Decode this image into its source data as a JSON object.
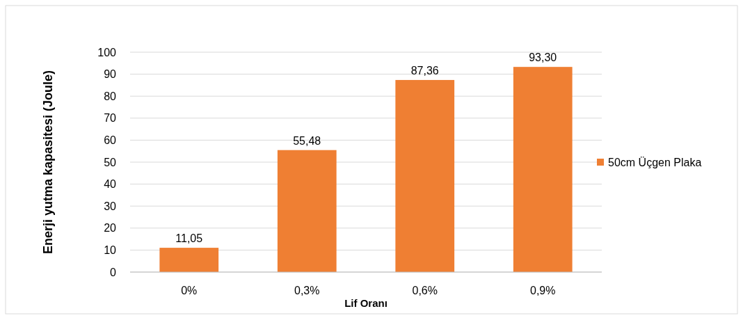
{
  "chart_data": {
    "type": "bar",
    "xlabel": "Lif Oranı",
    "ylabel": "Enerji yutma kapasitesi (Joule)",
    "categories": [
      "0%",
      "0,3%",
      "0,6%",
      "0,9%"
    ],
    "series": [
      {
        "name": "50cm Üçgen Plaka",
        "color": "#ef7f33",
        "values": [
          11.05,
          55.48,
          87.36,
          93.3
        ],
        "value_labels": [
          "11,05",
          "55,48",
          "87,36",
          "93,30"
        ]
      }
    ],
    "ylim": [
      0,
      100
    ],
    "yticks": [
      0,
      10,
      20,
      30,
      40,
      50,
      60,
      70,
      80,
      90,
      100
    ],
    "grid": "y",
    "legend": "right"
  }
}
